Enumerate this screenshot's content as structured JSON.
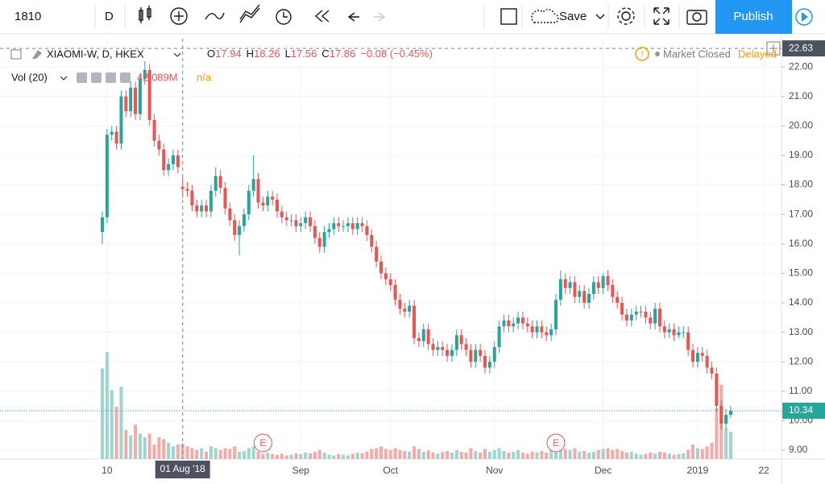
{
  "toolbar": {
    "symbol": "1810",
    "interval": "D",
    "save": "Save",
    "publish": "Publish"
  },
  "legend": {
    "symbol": "XIAOMI-W, D, HKEX",
    "open_label": "O",
    "high_label": "H",
    "low_label": "L",
    "close_label": "C",
    "change": "−0.08 (−0.45%)",
    "market_status": "Market Closed",
    "delayed": "Delayed",
    "volume_title": "Vol (20)",
    "volume": "42.089M",
    "volume_ma": "n/a"
  },
  "chart_data": {
    "type": "candlestick",
    "up_color": "#26a69a",
    "down_color": "#ef5350",
    "volume_up_color": "#9dd6cf",
    "volume_down_color": "#f6aaa8",
    "grid": true,
    "ylim": [
      8.7,
      22.96
    ],
    "yticks": [
      {
        "value": 9,
        "label": "9.00"
      },
      {
        "value": 10,
        "label": "10.00"
      },
      {
        "value": 11,
        "label": "11.00"
      },
      {
        "value": 12,
        "label": "12.00"
      },
      {
        "value": 13,
        "label": "13.00"
      },
      {
        "value": 14,
        "label": "14.00"
      },
      {
        "value": 15,
        "label": "15.00"
      },
      {
        "value": 16,
        "label": "16.00"
      },
      {
        "value": 17,
        "label": "17.00"
      },
      {
        "value": 18,
        "label": "18.00"
      },
      {
        "value": 19,
        "label": "19.00"
      },
      {
        "value": 20,
        "label": "20.00"
      },
      {
        "value": 21,
        "label": "21.00"
      },
      {
        "value": 22,
        "label": "22.00"
      }
    ],
    "crosshair_price": 22.63,
    "event_label": "E",
    "categories": [
      null,
      "10",
      null,
      null,
      null,
      null,
      null,
      null,
      null,
      null,
      null,
      null,
      null,
      null,
      null,
      null,
      null,
      "01 Aug '18",
      null,
      null,
      null,
      null,
      null,
      null,
      null,
      null,
      null,
      null,
      null,
      null,
      null,
      null,
      null,
      null,
      null,
      null,
      null,
      null,
      null,
      null,
      null,
      null,
      "Sep",
      null,
      null,
      null,
      null,
      null,
      null,
      null,
      null,
      null,
      null,
      null,
      null,
      null,
      null,
      null,
      null,
      null,
      null,
      "Oct",
      null,
      null,
      null,
      null,
      null,
      null,
      null,
      null,
      null,
      null,
      null,
      null,
      null,
      null,
      null,
      null,
      null,
      null,
      null,
      null,
      null,
      "Nov",
      null,
      null,
      null,
      null,
      null,
      null,
      null,
      null,
      null,
      null,
      null,
      null,
      null,
      null,
      null,
      null,
      null,
      null,
      null,
      null,
      null,
      null,
      "Dec",
      null,
      null,
      null,
      null,
      null,
      null,
      null,
      null,
      null,
      null,
      null,
      null,
      null,
      null,
      null,
      null,
      null,
      null,
      null,
      "2019",
      null,
      null,
      null,
      null,
      null,
      null,
      null,
      null,
      null,
      null,
      null,
      null,
      null,
      "22"
    ],
    "open": [
      16.4,
      16.9,
      19.7,
      19.8,
      19.4,
      21.0,
      20.5,
      21.3,
      20.4,
      21.6,
      21.9,
      20.2,
      19.5,
      19.2,
      18.5,
      18.7,
      19.0,
      17.94,
      17.86,
      17.8,
      17.3,
      17.1,
      17.3,
      17.1,
      17.8,
      18.3,
      17.9,
      17.2,
      16.8,
      16.3,
      16.6,
      17.0,
      17.8,
      18.2,
      17.4,
      17.3,
      17.6,
      17.5,
      17.1,
      16.9,
      16.8,
      16.8,
      16.6,
      16.7,
      16.9,
      16.6,
      16.2,
      15.9,
      16.4,
      16.5,
      16.7,
      16.6,
      16.6,
      16.7,
      16.5,
      16.7,
      16.6,
      16.3,
      15.9,
      15.4,
      15.0,
      14.8,
      14.6,
      14.1,
      13.8,
      13.7,
      13.9,
      12.8,
      12.7,
      13.1,
      12.6,
      12.4,
      12.5,
      12.4,
      12.2,
      12.4,
      12.9,
      12.6,
      12.4,
      12.0,
      12.4,
      12.2,
      11.8,
      12.0,
      12.5,
      13.2,
      13.4,
      13.2,
      13.3,
      13.5,
      13.3,
      13.2,
      13.0,
      13.2,
      13.0,
      12.9,
      13.1,
      14.1,
      14.8,
      14.5,
      14.7,
      14.2,
      14.4,
      14.0,
      14.3,
      14.7,
      14.5,
      14.9,
      14.6,
      14.2,
      14.0,
      13.6,
      13.4,
      13.6,
      13.7,
      13.7,
      13.5,
      13.3,
      13.8,
      13.2,
      13.0,
      13.1,
      12.9,
      13.0,
      13.0,
      12.4,
      12.0,
      12.3,
      12.2,
      11.8,
      11.6,
      10.5,
      9.9,
      10.2,
      null,
      null,
      null,
      null,
      null,
      null,
      null
    ],
    "high": [
      17.1,
      19.9,
      20.0,
      20.0,
      21.2,
      21.2,
      21.5,
      21.5,
      21.8,
      22.2,
      22.1,
      20.4,
      19.7,
      19.4,
      18.9,
      19.2,
      19.2,
      18.26,
      18.1,
      18.0,
      17.5,
      17.5,
      17.5,
      18.0,
      18.6,
      18.5,
      18.1,
      17.4,
      17.0,
      16.8,
      17.2,
      18.0,
      19.0,
      18.4,
      17.6,
      17.8,
      17.8,
      17.7,
      17.3,
      17.1,
      17.0,
      17.0,
      16.9,
      17.1,
      17.1,
      16.8,
      16.4,
      16.6,
      16.7,
      16.9,
      16.9,
      16.8,
      16.9,
      16.9,
      16.9,
      16.9,
      16.8,
      16.5,
      16.1,
      15.6,
      15.2,
      15.0,
      14.8,
      14.3,
      14.0,
      14.1,
      14.1,
      13.0,
      13.3,
      13.3,
      12.8,
      12.7,
      12.7,
      12.6,
      12.6,
      13.1,
      13.1,
      12.8,
      12.6,
      12.6,
      12.6,
      12.4,
      12.2,
      12.7,
      13.4,
      13.6,
      13.6,
      13.5,
      13.7,
      13.7,
      13.5,
      13.4,
      13.4,
      13.4,
      13.2,
      13.3,
      14.3,
      15.1,
      15.0,
      14.9,
      14.9,
      14.6,
      14.6,
      14.5,
      14.9,
      14.9,
      15.0,
      15.1,
      14.8,
      14.4,
      14.2,
      13.8,
      13.8,
      13.9,
      13.9,
      13.9,
      13.7,
      14.0,
      14.0,
      13.4,
      13.3,
      13.3,
      13.2,
      13.2,
      13.2,
      12.6,
      12.5,
      12.5,
      12.4,
      12.0,
      11.8,
      10.7,
      10.4,
      10.5,
      null,
      null,
      null,
      null,
      null,
      null,
      null
    ],
    "low": [
      16.0,
      16.7,
      19.5,
      19.2,
      19.2,
      20.3,
      20.3,
      20.2,
      20.2,
      21.4,
      20.0,
      19.3,
      19.0,
      18.3,
      18.3,
      18.5,
      18.4,
      17.56,
      17.6,
      17.1,
      16.9,
      16.9,
      16.9,
      16.9,
      17.6,
      17.7,
      17.0,
      16.6,
      16.1,
      15.6,
      16.4,
      16.8,
      17.6,
      17.2,
      17.1,
      17.1,
      17.3,
      16.9,
      16.7,
      16.6,
      16.6,
      16.4,
      16.4,
      16.5,
      16.4,
      16.0,
      15.7,
      15.7,
      16.2,
      16.3,
      16.4,
      16.4,
      16.4,
      16.3,
      16.3,
      16.4,
      16.1,
      15.7,
      15.2,
      14.8,
      14.6,
      14.4,
      13.9,
      13.6,
      13.5,
      13.5,
      12.6,
      12.5,
      12.5,
      12.4,
      12.2,
      12.2,
      12.2,
      12.0,
      12.0,
      12.2,
      12.4,
      12.2,
      11.8,
      11.8,
      12.0,
      11.6,
      11.6,
      11.8,
      12.3,
      13.0,
      13.0,
      13.0,
      13.1,
      13.1,
      13.0,
      12.8,
      12.8,
      12.8,
      12.7,
      12.7,
      12.9,
      13.9,
      14.3,
      14.3,
      14.0,
      14.0,
      13.8,
      13.8,
      14.1,
      14.3,
      14.3,
      14.4,
      14.0,
      13.8,
      13.4,
      13.2,
      13.2,
      13.4,
      13.5,
      13.3,
      13.1,
      13.1,
      13.0,
      12.8,
      12.8,
      12.7,
      12.8,
      12.8,
      12.2,
      11.8,
      11.8,
      12.0,
      11.6,
      11.4,
      10.3,
      9.7,
      9.7,
      10.1,
      null,
      null,
      null,
      null,
      null,
      null,
      null
    ],
    "close": [
      16.9,
      19.7,
      19.8,
      19.4,
      21.0,
      20.5,
      21.3,
      20.4,
      21.6,
      21.9,
      20.2,
      19.5,
      19.2,
      18.5,
      18.7,
      19.0,
      18.6,
      17.86,
      17.8,
      17.3,
      17.1,
      17.3,
      17.1,
      17.8,
      18.3,
      17.9,
      17.2,
      16.8,
      16.3,
      16.6,
      17.0,
      17.8,
      18.2,
      17.4,
      17.3,
      17.6,
      17.5,
      17.1,
      16.9,
      16.8,
      16.8,
      16.6,
      16.7,
      16.9,
      16.6,
      16.2,
      15.9,
      16.4,
      16.5,
      16.7,
      16.6,
      16.6,
      16.7,
      16.5,
      16.7,
      16.6,
      16.3,
      15.9,
      15.4,
      15.0,
      14.8,
      14.6,
      14.1,
      13.8,
      13.7,
      13.9,
      12.8,
      12.7,
      13.1,
      12.6,
      12.4,
      12.5,
      12.4,
      12.2,
      12.4,
      12.9,
      12.6,
      12.4,
      12.0,
      12.4,
      12.2,
      11.8,
      12.0,
      12.5,
      13.2,
      13.4,
      13.2,
      13.3,
      13.5,
      13.3,
      13.2,
      13.0,
      13.2,
      13.0,
      12.9,
      13.1,
      14.1,
      14.8,
      14.5,
      14.7,
      14.2,
      14.4,
      14.0,
      14.3,
      14.7,
      14.5,
      14.9,
      14.6,
      14.2,
      14.0,
      13.6,
      13.4,
      13.6,
      13.7,
      13.7,
      13.5,
      13.3,
      13.8,
      13.2,
      13.0,
      13.1,
      12.9,
      13.0,
      13.0,
      12.4,
      12.0,
      12.3,
      12.2,
      11.8,
      11.6,
      10.5,
      9.9,
      10.2,
      10.34,
      null,
      null,
      null,
      null,
      null,
      null,
      null
    ],
    "volume": [
      250,
      295,
      190,
      145,
      200,
      80,
      65,
      95,
      70,
      60,
      70,
      40,
      60,
      55,
      45,
      35,
      40,
      42.089,
      35,
      30,
      25,
      30,
      20,
      35,
      30,
      25,
      30,
      28,
      35,
      20,
      22,
      30,
      35,
      20,
      15,
      18,
      14,
      12,
      15,
      10,
      12,
      16,
      14,
      18,
      16,
      20,
      25,
      18,
      12,
      10,
      14,
      12,
      10,
      15,
      18,
      16,
      20,
      28,
      30,
      35,
      28,
      25,
      30,
      25,
      22,
      20,
      35,
      28,
      20,
      24,
      18,
      15,
      20,
      22,
      18,
      25,
      20,
      18,
      30,
      22,
      18,
      28,
      20,
      25,
      30,
      22,
      18,
      20,
      25,
      18,
      15,
      20,
      18,
      22,
      18,
      25,
      45,
      35,
      28,
      25,
      30,
      20,
      22,
      18,
      20,
      25,
      28,
      30,
      25,
      28,
      22,
      18,
      20,
      15,
      12,
      14,
      18,
      15,
      20,
      18,
      15,
      12,
      14,
      16,
      25,
      40,
      30,
      28,
      35,
      45,
      140,
      205,
      85,
      75,
      null,
      null,
      null,
      null,
      null,
      null,
      null
    ]
  }
}
